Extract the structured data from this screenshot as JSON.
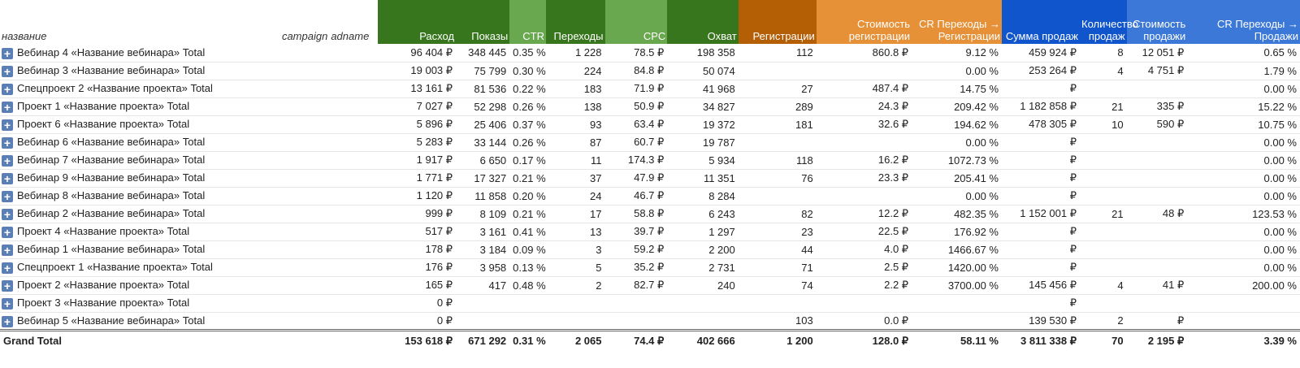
{
  "headers": {
    "name": "название",
    "campaign": "campaign",
    "adname": "adname",
    "cols": [
      "Расход",
      "Показы",
      "CTR",
      "Переходы",
      "CPC",
      "Охват",
      "Регистрации",
      "Стоимость регистрации",
      "CR Переходы → Регистрации",
      "Сумма продаж",
      "Количество продаж",
      "Стоимость продажи",
      "CR Переходы → Продажи"
    ]
  },
  "rows": [
    {
      "name": "Вебинар 4 «Название вебинара» Total",
      "v": [
        "96 404 ₽",
        "348 445",
        "0.35 %",
        "1 228",
        "78.5 ₽",
        "198 358",
        "112",
        "860.8 ₽",
        "9.12 %",
        "459 924 ₽",
        "8",
        "12 051 ₽",
        "0.65 %"
      ]
    },
    {
      "name": "Вебинар 3 «Название вебинара» Total",
      "v": [
        "19 003 ₽",
        "75 799",
        "0.30 %",
        "224",
        "84.8 ₽",
        "50 074",
        "",
        "",
        "0.00 %",
        "253 264 ₽",
        "4",
        "4 751 ₽",
        "1.79 %"
      ]
    },
    {
      "name": "Спецпроект 2 «Название проекта» Total",
      "v": [
        "13 161 ₽",
        "81 536",
        "0.22 %",
        "183",
        "71.9 ₽",
        "41 968",
        "27",
        "487.4 ₽",
        "14.75 %",
        "₽",
        "",
        "",
        "0.00 %"
      ]
    },
    {
      "name": "Проект 1 «Название проекта» Total",
      "v": [
        "7 027 ₽",
        "52 298",
        "0.26 %",
        "138",
        "50.9 ₽",
        "34 827",
        "289",
        "24.3 ₽",
        "209.42 %",
        "1 182 858 ₽",
        "21",
        "335 ₽",
        "15.22 %"
      ]
    },
    {
      "name": "Проект 6 «Название проекта» Total",
      "v": [
        "5 896 ₽",
        "25 406",
        "0.37 %",
        "93",
        "63.4 ₽",
        "19 372",
        "181",
        "32.6 ₽",
        "194.62 %",
        "478 305 ₽",
        "10",
        "590 ₽",
        "10.75 %"
      ]
    },
    {
      "name": "Вебинар 6 «Название вебинара» Total",
      "v": [
        "5 283 ₽",
        "33 144",
        "0.26 %",
        "87",
        "60.7 ₽",
        "19 787",
        "",
        "",
        "0.00 %",
        "₽",
        "",
        "",
        "0.00 %"
      ]
    },
    {
      "name": "Вебинар 7 «Название вебинара» Total",
      "v": [
        "1 917 ₽",
        "6 650",
        "0.17 %",
        "11",
        "174.3 ₽",
        "5 934",
        "118",
        "16.2 ₽",
        "1072.73 %",
        "₽",
        "",
        "",
        "0.00 %"
      ]
    },
    {
      "name": "Вебинар 9 «Название вебинара» Total",
      "v": [
        "1 771 ₽",
        "17 327",
        "0.21 %",
        "37",
        "47.9 ₽",
        "11 351",
        "76",
        "23.3 ₽",
        "205.41 %",
        "₽",
        "",
        "",
        "0.00 %"
      ]
    },
    {
      "name": "Вебинар 8 «Название вебинара» Total",
      "v": [
        "1 120 ₽",
        "11 858",
        "0.20 %",
        "24",
        "46.7 ₽",
        "8 284",
        "",
        "",
        "0.00 %",
        "₽",
        "",
        "",
        "0.00 %"
      ]
    },
    {
      "name": "Вебинар 2 «Название вебинара» Total",
      "v": [
        "999 ₽",
        "8 109",
        "0.21 %",
        "17",
        "58.8 ₽",
        "6 243",
        "82",
        "12.2 ₽",
        "482.35 %",
        "1 152 001 ₽",
        "21",
        "48 ₽",
        "123.53 %"
      ]
    },
    {
      "name": "Проект 4 «Название проекта» Total",
      "v": [
        "517 ₽",
        "3 161",
        "0.41 %",
        "13",
        "39.7 ₽",
        "1 297",
        "23",
        "22.5 ₽",
        "176.92 %",
        "₽",
        "",
        "",
        "0.00 %"
      ]
    },
    {
      "name": "Вебинар 1 «Название вебинара» Total",
      "v": [
        "178 ₽",
        "3 184",
        "0.09 %",
        "3",
        "59.2 ₽",
        "2 200",
        "44",
        "4.0 ₽",
        "1466.67 %",
        "₽",
        "",
        "",
        "0.00 %"
      ]
    },
    {
      "name": "Спецпроект 1 «Название проекта» Total",
      "v": [
        "176 ₽",
        "3 958",
        "0.13 %",
        "5",
        "35.2 ₽",
        "2 731",
        "71",
        "2.5 ₽",
        "1420.00 %",
        "₽",
        "",
        "",
        "0.00 %"
      ]
    },
    {
      "name": "Проект 2 «Название проекта» Total",
      "v": [
        "165 ₽",
        "417",
        "0.48 %",
        "2",
        "82.7 ₽",
        "240",
        "74",
        "2.2 ₽",
        "3700.00 %",
        "145 456 ₽",
        "4",
        "41 ₽",
        "200.00 %"
      ]
    },
    {
      "name": "Проект 3 «Название проекта» Total",
      "v": [
        "0 ₽",
        "",
        "",
        "",
        "",
        "",
        "",
        "",
        "",
        "₽",
        "",
        "",
        ""
      ]
    },
    {
      "name": "Вебинар 5 «Название вебинара» Total",
      "v": [
        "0 ₽",
        "",
        "",
        "",
        "",
        "",
        "103",
        "0.0 ₽",
        "",
        "139 530 ₽",
        "2",
        "₽",
        ""
      ]
    }
  ],
  "total": {
    "name": "Grand Total",
    "v": [
      "153 618 ₽",
      "671 292",
      "0.31 %",
      "2 065",
      "74.4 ₽",
      "402 666",
      "1 200",
      "128.0 ₽",
      "58.11 %",
      "3 811 338 ₽",
      "70",
      "2 195 ₽",
      "3.39 %"
    ]
  },
  "colors": {
    "green": "#38761d",
    "lightgreen": "#6aa84f",
    "orange": "#b45f06",
    "lightorange": "#e69138",
    "blue": "#1155cc",
    "lightblue": "#3c78d8",
    "expand": "#5b7fb5"
  },
  "icons": {
    "expand": "plus-box-icon"
  }
}
